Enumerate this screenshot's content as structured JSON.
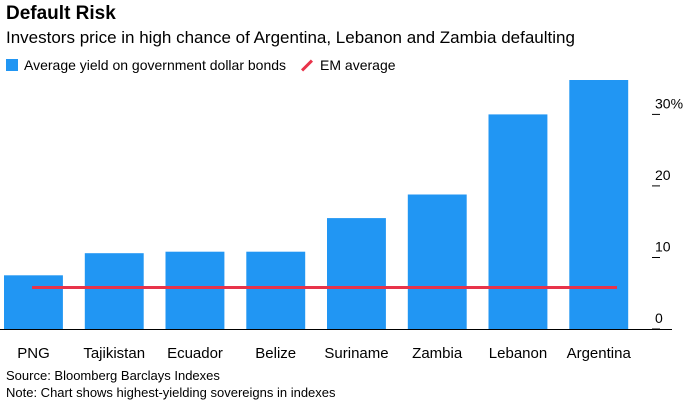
{
  "chart_data": {
    "type": "bar",
    "title": "Default Risk",
    "subtitle": "Investors price in high chance of Argentina, Lebanon and Zambia defaulting",
    "categories": [
      "PNG",
      "Tajikistan",
      "Ecuador",
      "Belize",
      "Suriname",
      "Zambia",
      "Lebanon",
      "Argentina"
    ],
    "series": [
      {
        "name": "Average yield on government dollar bonds",
        "values": [
          7.5,
          10.6,
          10.8,
          10.8,
          15.5,
          18.8,
          30.0,
          34.8
        ],
        "color": "#2196f3"
      }
    ],
    "reference_line": {
      "name": "EM average",
      "value": 5.8,
      "color": "#e8334a"
    },
    "yticks": [
      0,
      10,
      20,
      30
    ],
    "ytick_labels": [
      "0",
      "10",
      "20",
      "30%"
    ],
    "ylim": [
      0,
      35.5
    ],
    "y_axis_position": "right",
    "legend_position": "top-left",
    "grid": false,
    "source": "Source: Bloomberg Barclays Indexes",
    "note": "Note: Chart shows highest-yielding sovereigns in indexes"
  }
}
